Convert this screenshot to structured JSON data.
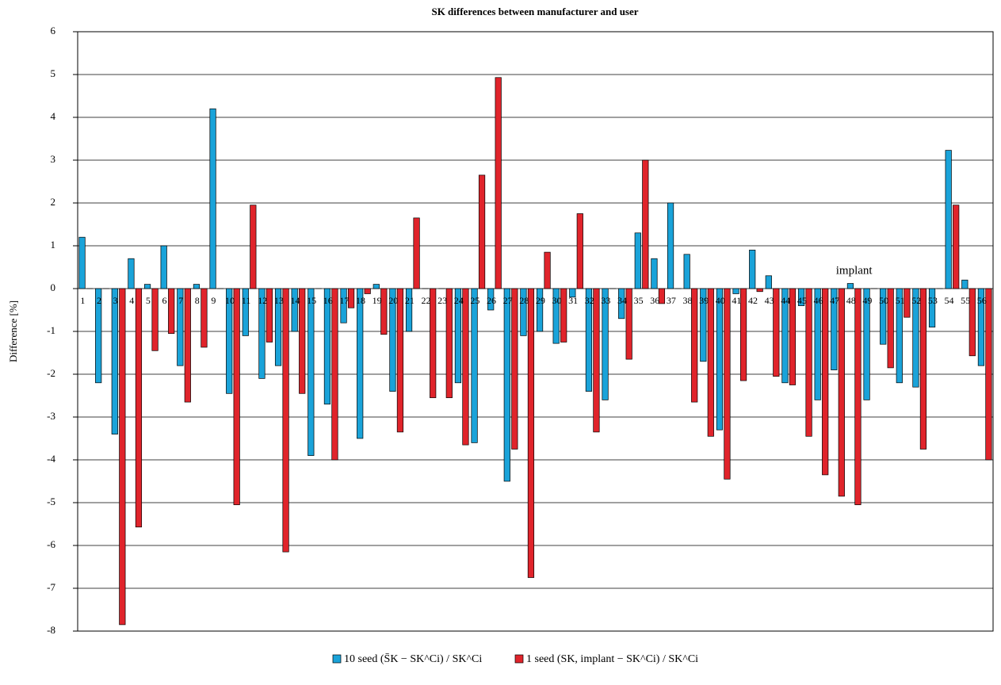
{
  "chart_data": {
    "type": "bar",
    "title": "SK differences between manufacturer and user",
    "y_label": "Difference [%]",
    "annotation": "implant",
    "categories": [
      "1",
      "2",
      "3",
      "4",
      "5",
      "6",
      "7",
      "8",
      "9",
      "10",
      "11",
      "12",
      "13",
      "14",
      "15",
      "16",
      "17",
      "18",
      "19",
      "20",
      "21",
      "22",
      "23",
      "24",
      "25",
      "26",
      "27",
      "28",
      "29",
      "30",
      "31",
      "32",
      "33",
      "34",
      "35",
      "36",
      "37",
      "38",
      "39",
      "40",
      "41",
      "42",
      "43",
      "44",
      "45",
      "46",
      "47",
      "48",
      "49",
      "50",
      "51",
      "52",
      "53",
      "54",
      "55",
      "56"
    ],
    "series": [
      {
        "name": "10 seed (S̄K − SK^Ci) / SK^Ci",
        "color": "#1aa3d9",
        "values": [
          1.2,
          -2.2,
          -3.4,
          0.7,
          0.1,
          1.0,
          -1.8,
          0.1,
          4.2,
          -2.45,
          -1.1,
          -2.1,
          -1.8,
          -1.0,
          -3.9,
          -2.7,
          -0.8,
          -3.5,
          0.1,
          -2.4,
          -1.0,
          0,
          0,
          -2.2,
          -3.6,
          -0.5,
          -4.5,
          -1.1,
          -1.0,
          -1.28,
          -0.2,
          -2.4,
          -2.6,
          -0.7,
          1.3,
          0.7,
          2.0,
          0.8,
          -1.7,
          -3.3,
          -0.12,
          0.9,
          0.3,
          -2.2,
          -0.4,
          -2.6,
          -1.9,
          0.12,
          -2.6,
          -1.3,
          -2.2,
          -2.3,
          -0.9,
          3.23,
          0.2,
          -1.8
        ]
      },
      {
        "name": "1 seed (SK, implant − SK^Ci) / SK^Ci",
        "color": "#e0242b",
        "values": [
          0,
          0,
          -7.85,
          -5.57,
          -1.45,
          -1.05,
          -2.65,
          -1.37,
          0,
          -5.05,
          1.95,
          -1.25,
          -6.15,
          -2.45,
          0,
          -4.0,
          -0.45,
          -0.12,
          -1.07,
          -3.35,
          1.65,
          -2.55,
          -2.55,
          -3.65,
          2.65,
          4.93,
          -3.75,
          -6.75,
          0.85,
          -1.25,
          1.75,
          -3.35,
          0,
          -1.65,
          3.0,
          -0.35,
          0,
          -2.65,
          -3.45,
          -4.45,
          -2.15,
          -0.07,
          -2.05,
          -2.25,
          -3.45,
          -4.35,
          -4.85,
          -5.05,
          0,
          -1.85,
          -0.67,
          -3.75,
          0,
          1.95,
          -1.57,
          -4.0
        ]
      }
    ],
    "ylim": [
      -8,
      6
    ],
    "yticks": [
      -8,
      -7,
      -6,
      -5,
      -4,
      -3,
      -2,
      -1,
      0,
      1,
      2,
      3,
      4,
      5,
      6
    ],
    "grid": true
  }
}
